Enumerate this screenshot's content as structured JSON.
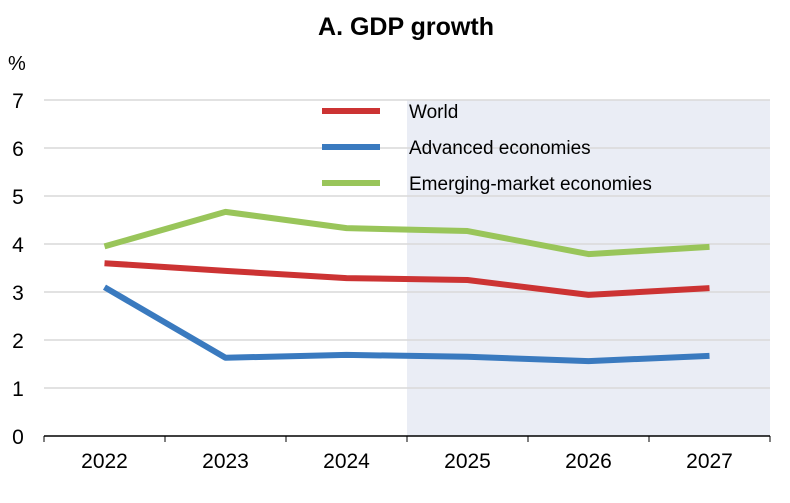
{
  "chart_data": {
    "type": "line",
    "title": "A. GDP growth",
    "ylabel": "%",
    "xlabel": "",
    "categories": [
      "2022",
      "2023",
      "2024",
      "2025",
      "2026",
      "2027"
    ],
    "ylim": [
      0,
      7
    ],
    "yticks": [
      "0",
      "1",
      "2",
      "3",
      "4",
      "5",
      "6",
      "7"
    ],
    "grid": true,
    "legend": "top-center",
    "shaded_region": {
      "from_between": [
        "2024",
        "2025"
      ],
      "to": "end",
      "color": "#eaedf5"
    },
    "series": [
      {
        "name": "World",
        "color": "#cc3333",
        "values": [
          3.6,
          3.44,
          3.29,
          3.25,
          2.94,
          3.08
        ]
      },
      {
        "name": "Advanced economies",
        "color": "#3a7abf",
        "values": [
          3.1,
          1.63,
          1.69,
          1.65,
          1.56,
          1.67
        ]
      },
      {
        "name": "Emerging-market economies",
        "color": "#99c55a",
        "values": [
          3.95,
          4.67,
          4.33,
          4.27,
          3.79,
          3.94
        ]
      }
    ]
  }
}
